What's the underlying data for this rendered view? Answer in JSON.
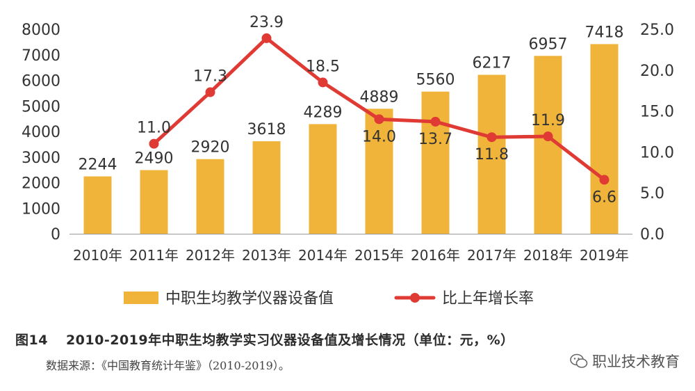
{
  "chart_data": {
    "type": "bar+line",
    "categories": [
      "2010年",
      "2011年",
      "2012年",
      "2013年",
      "2014年",
      "2015年",
      "2016年",
      "2017年",
      "2018年",
      "2019年"
    ],
    "bar_series": {
      "name": "中职生均教学仪器设备值",
      "values": [
        2244,
        2490,
        2920,
        3618,
        4289,
        4889,
        5560,
        6217,
        6957,
        7418
      ],
      "labels": [
        "2244",
        "2490",
        "2920",
        "3618",
        "4289",
        "4889",
        "5560",
        "6217",
        "6957",
        "7418"
      ],
      "color": "#F0B43A"
    },
    "line_series": {
      "name": "比上年增长率",
      "x": [
        "2011年",
        "2012年",
        "2013年",
        "2014年",
        "2015年",
        "2016年",
        "2017年",
        "2018年",
        "2019年"
      ],
      "values": [
        11.0,
        17.3,
        23.9,
        18.5,
        14.0,
        13.7,
        11.8,
        11.9,
        6.6
      ],
      "labels": [
        "11.0",
        "17.3",
        "23.9",
        "18.5",
        "14.0",
        "13.7",
        "11.8",
        "11.9",
        "6.6"
      ],
      "color": "#E03A35"
    },
    "y_left": {
      "min": 0,
      "max": 8000,
      "ticks": [
        "0",
        "1000",
        "2000",
        "3000",
        "4000",
        "5000",
        "6000",
        "7000",
        "8000"
      ]
    },
    "y_right": {
      "min": 0,
      "max": 25,
      "ticks": [
        "0.0",
        "5.0",
        "10.0",
        "15.0",
        "20.0",
        "25.0"
      ]
    },
    "legend_position": "bottom-center",
    "grid": false
  },
  "caption": {
    "number": "图14",
    "text": "2010-2019年中职生均教学实习仪器设备值及增长情况（单位：元，%）"
  },
  "source": "数据来源：《中国教育统计年鉴》（2010-2019）。",
  "watermark": {
    "icon": "wechat-icon",
    "text": "职业技术教育"
  }
}
